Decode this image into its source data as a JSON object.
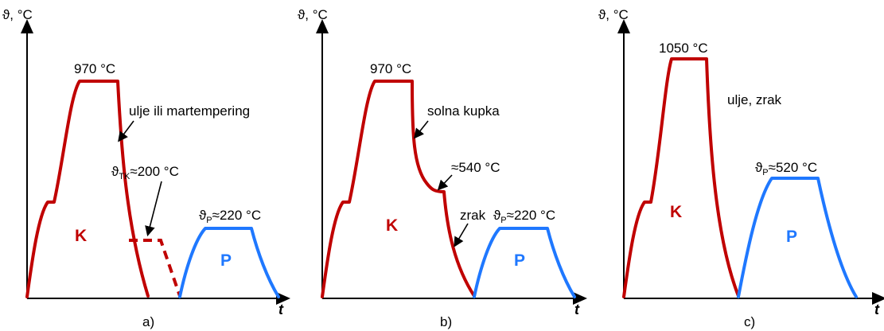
{
  "panels": [
    {
      "id": "a",
      "y_axis_label": "ϑ, °C",
      "x_axis_label": "t",
      "hardening_temp": "970 °C",
      "quench_medium": "ulje ili martempering",
      "interrupt_label_main": "ϑ",
      "interrupt_label_sub": "TK",
      "interrupt_label_rest": "≈200 °C",
      "tempering_label_main": "ϑ",
      "tempering_label_sub": "P",
      "tempering_label_rest": "≈220 °C",
      "k_label": "K",
      "p_label": "P",
      "caption": "a)"
    },
    {
      "id": "b",
      "y_axis_label": "ϑ, °C",
      "x_axis_label": "t",
      "hardening_temp": "970 °C",
      "quench_medium": "solna kupka",
      "intermediate_temp": "≈540 °C",
      "second_medium": "zrak",
      "tempering_label_main": "ϑ",
      "tempering_label_sub": "P",
      "tempering_label_rest": "≈220 °C",
      "k_label": "K",
      "p_label": "P",
      "caption": "b)"
    },
    {
      "id": "c",
      "y_axis_label": "ϑ, °C",
      "x_axis_label": "t",
      "hardening_temp": "1050 °C",
      "quench_medium": "ulje, zrak",
      "tempering_label_main": "ϑ",
      "tempering_label_sub": "P",
      "tempering_label_rest": "≈520 °C",
      "k_label": "K",
      "p_label": "P",
      "caption": "c)"
    }
  ],
  "colors": {
    "hardening_curve": "#c00000",
    "tempering_curve": "#1f78ff",
    "axes": "#000000"
  }
}
